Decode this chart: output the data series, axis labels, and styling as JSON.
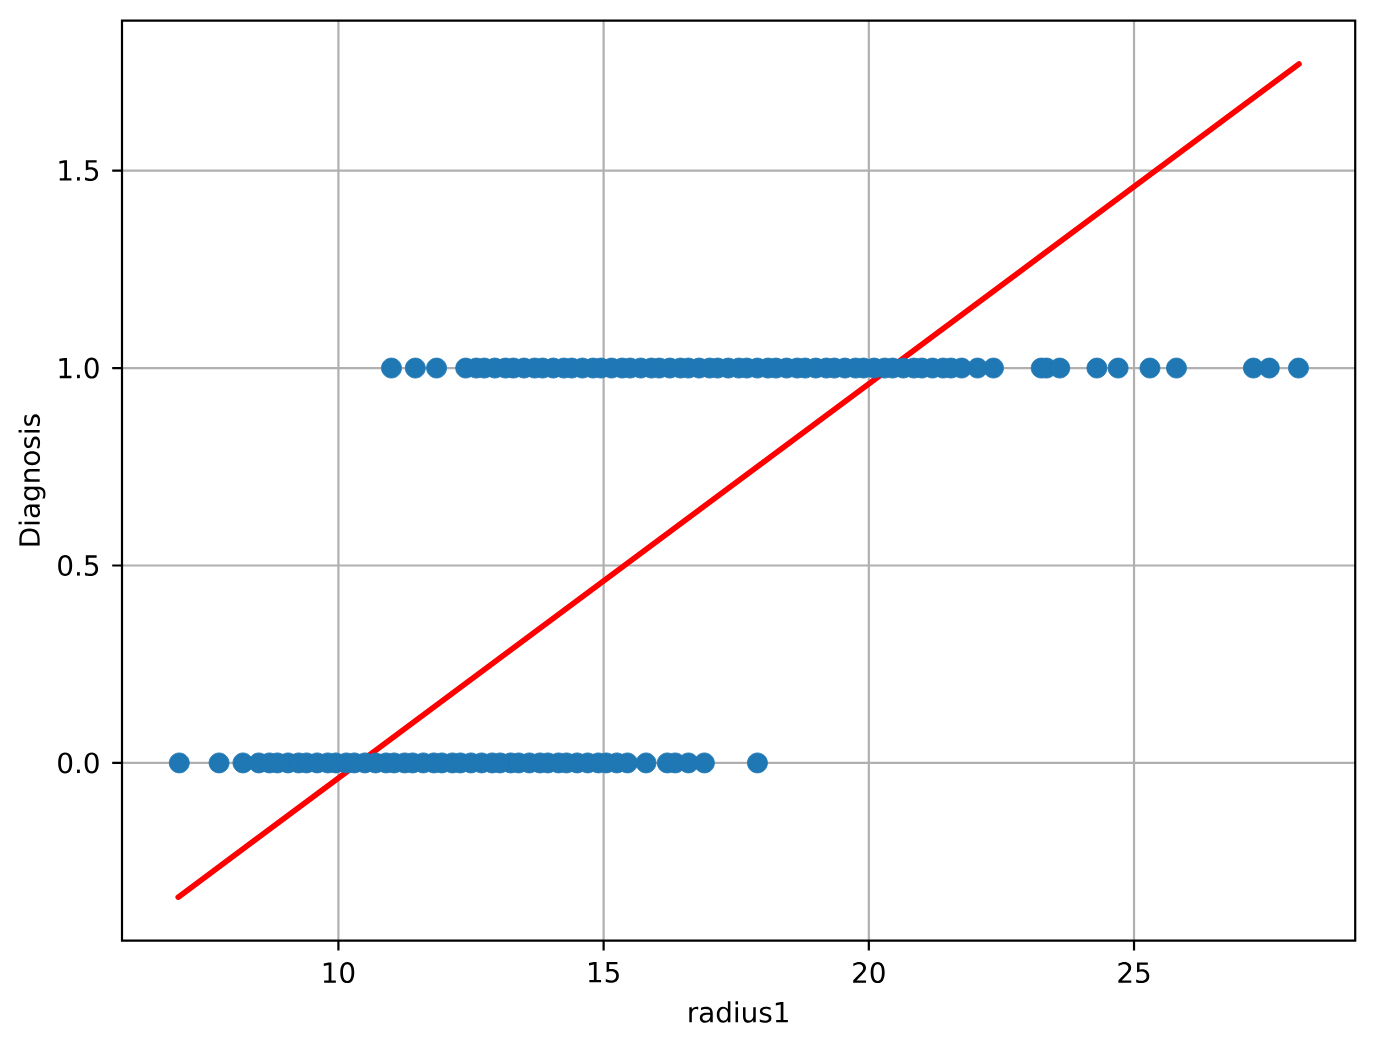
{
  "chart_data": {
    "type": "scatter",
    "xlabel": "radius1",
    "ylabel": "Diagnosis",
    "xlim": [
      5.92,
      29.17
    ],
    "ylim": [
      -0.45,
      1.88
    ],
    "xticks": [
      10,
      15,
      20,
      25
    ],
    "yticks": [
      {
        "value": 0,
        "label": "0.0"
      },
      {
        "value": 0.5,
        "label": "0.5"
      },
      {
        "value": 1,
        "label": "1.0"
      },
      {
        "value": 1.5,
        "label": "1.5"
      }
    ],
    "grid": true,
    "series": [
      {
        "color": "#1f77b4",
        "marker": "circle",
        "x": [
          7.0,
          7.75,
          8.2,
          8.5,
          8.7,
          8.85,
          9.05,
          9.25,
          9.4,
          9.6,
          9.8,
          9.95,
          10.15,
          10.3,
          10.5,
          10.7,
          10.9,
          11.05,
          11.25,
          11.4,
          11.6,
          11.8,
          11.95,
          12.15,
          12.3,
          12.5,
          12.7,
          12.9,
          13.05,
          13.25,
          13.4,
          13.6,
          13.8,
          13.95,
          14.15,
          14.3,
          14.5,
          14.7,
          14.9,
          15.05,
          15.25,
          15.45,
          15.8,
          16.2,
          16.35,
          16.6,
          16.9,
          17.9,
          11.0,
          11.45,
          11.85,
          12.4,
          12.6,
          12.75,
          12.95,
          13.15,
          13.3,
          13.5,
          13.7,
          13.85,
          14.05,
          14.25,
          14.4,
          14.6,
          14.8,
          14.95,
          15.15,
          15.35,
          15.5,
          15.7,
          15.9,
          16.05,
          16.25,
          16.45,
          16.6,
          16.8,
          17.0,
          17.15,
          17.35,
          17.55,
          17.7,
          17.9,
          18.1,
          18.25,
          18.45,
          18.65,
          18.8,
          19.0,
          19.2,
          19.35,
          19.55,
          19.75,
          19.9,
          20.1,
          20.3,
          20.45,
          20.65,
          20.85,
          21.0,
          21.2,
          21.4,
          21.55,
          21.75,
          22.05,
          22.35,
          23.25,
          23.35,
          23.6,
          24.3,
          24.7,
          25.3,
          25.8,
          27.25,
          27.55,
          28.1
        ],
        "values": [
          0,
          0,
          0,
          0,
          0,
          0,
          0,
          0,
          0,
          0,
          0,
          0,
          0,
          0,
          0,
          0,
          0,
          0,
          0,
          0,
          0,
          0,
          0,
          0,
          0,
          0,
          0,
          0,
          0,
          0,
          0,
          0,
          0,
          0,
          0,
          0,
          0,
          0,
          0,
          0,
          0,
          0,
          0,
          0,
          0,
          0,
          0,
          0,
          1,
          1,
          1,
          1,
          1,
          1,
          1,
          1,
          1,
          1,
          1,
          1,
          1,
          1,
          1,
          1,
          1,
          1,
          1,
          1,
          1,
          1,
          1,
          1,
          1,
          1,
          1,
          1,
          1,
          1,
          1,
          1,
          1,
          1,
          1,
          1,
          1,
          1,
          1,
          1,
          1,
          1,
          1,
          1,
          1,
          1,
          1,
          1,
          1,
          1,
          1,
          1,
          1,
          1,
          1,
          1,
          1,
          1,
          1,
          1,
          1,
          1,
          1,
          1,
          1,
          1,
          1
        ]
      },
      {
        "type": "line",
        "color": "#ff0000",
        "line_style": "solid",
        "x": [
          6.98,
          28.11
        ],
        "values": [
          -0.34,
          1.77
        ]
      }
    ]
  }
}
